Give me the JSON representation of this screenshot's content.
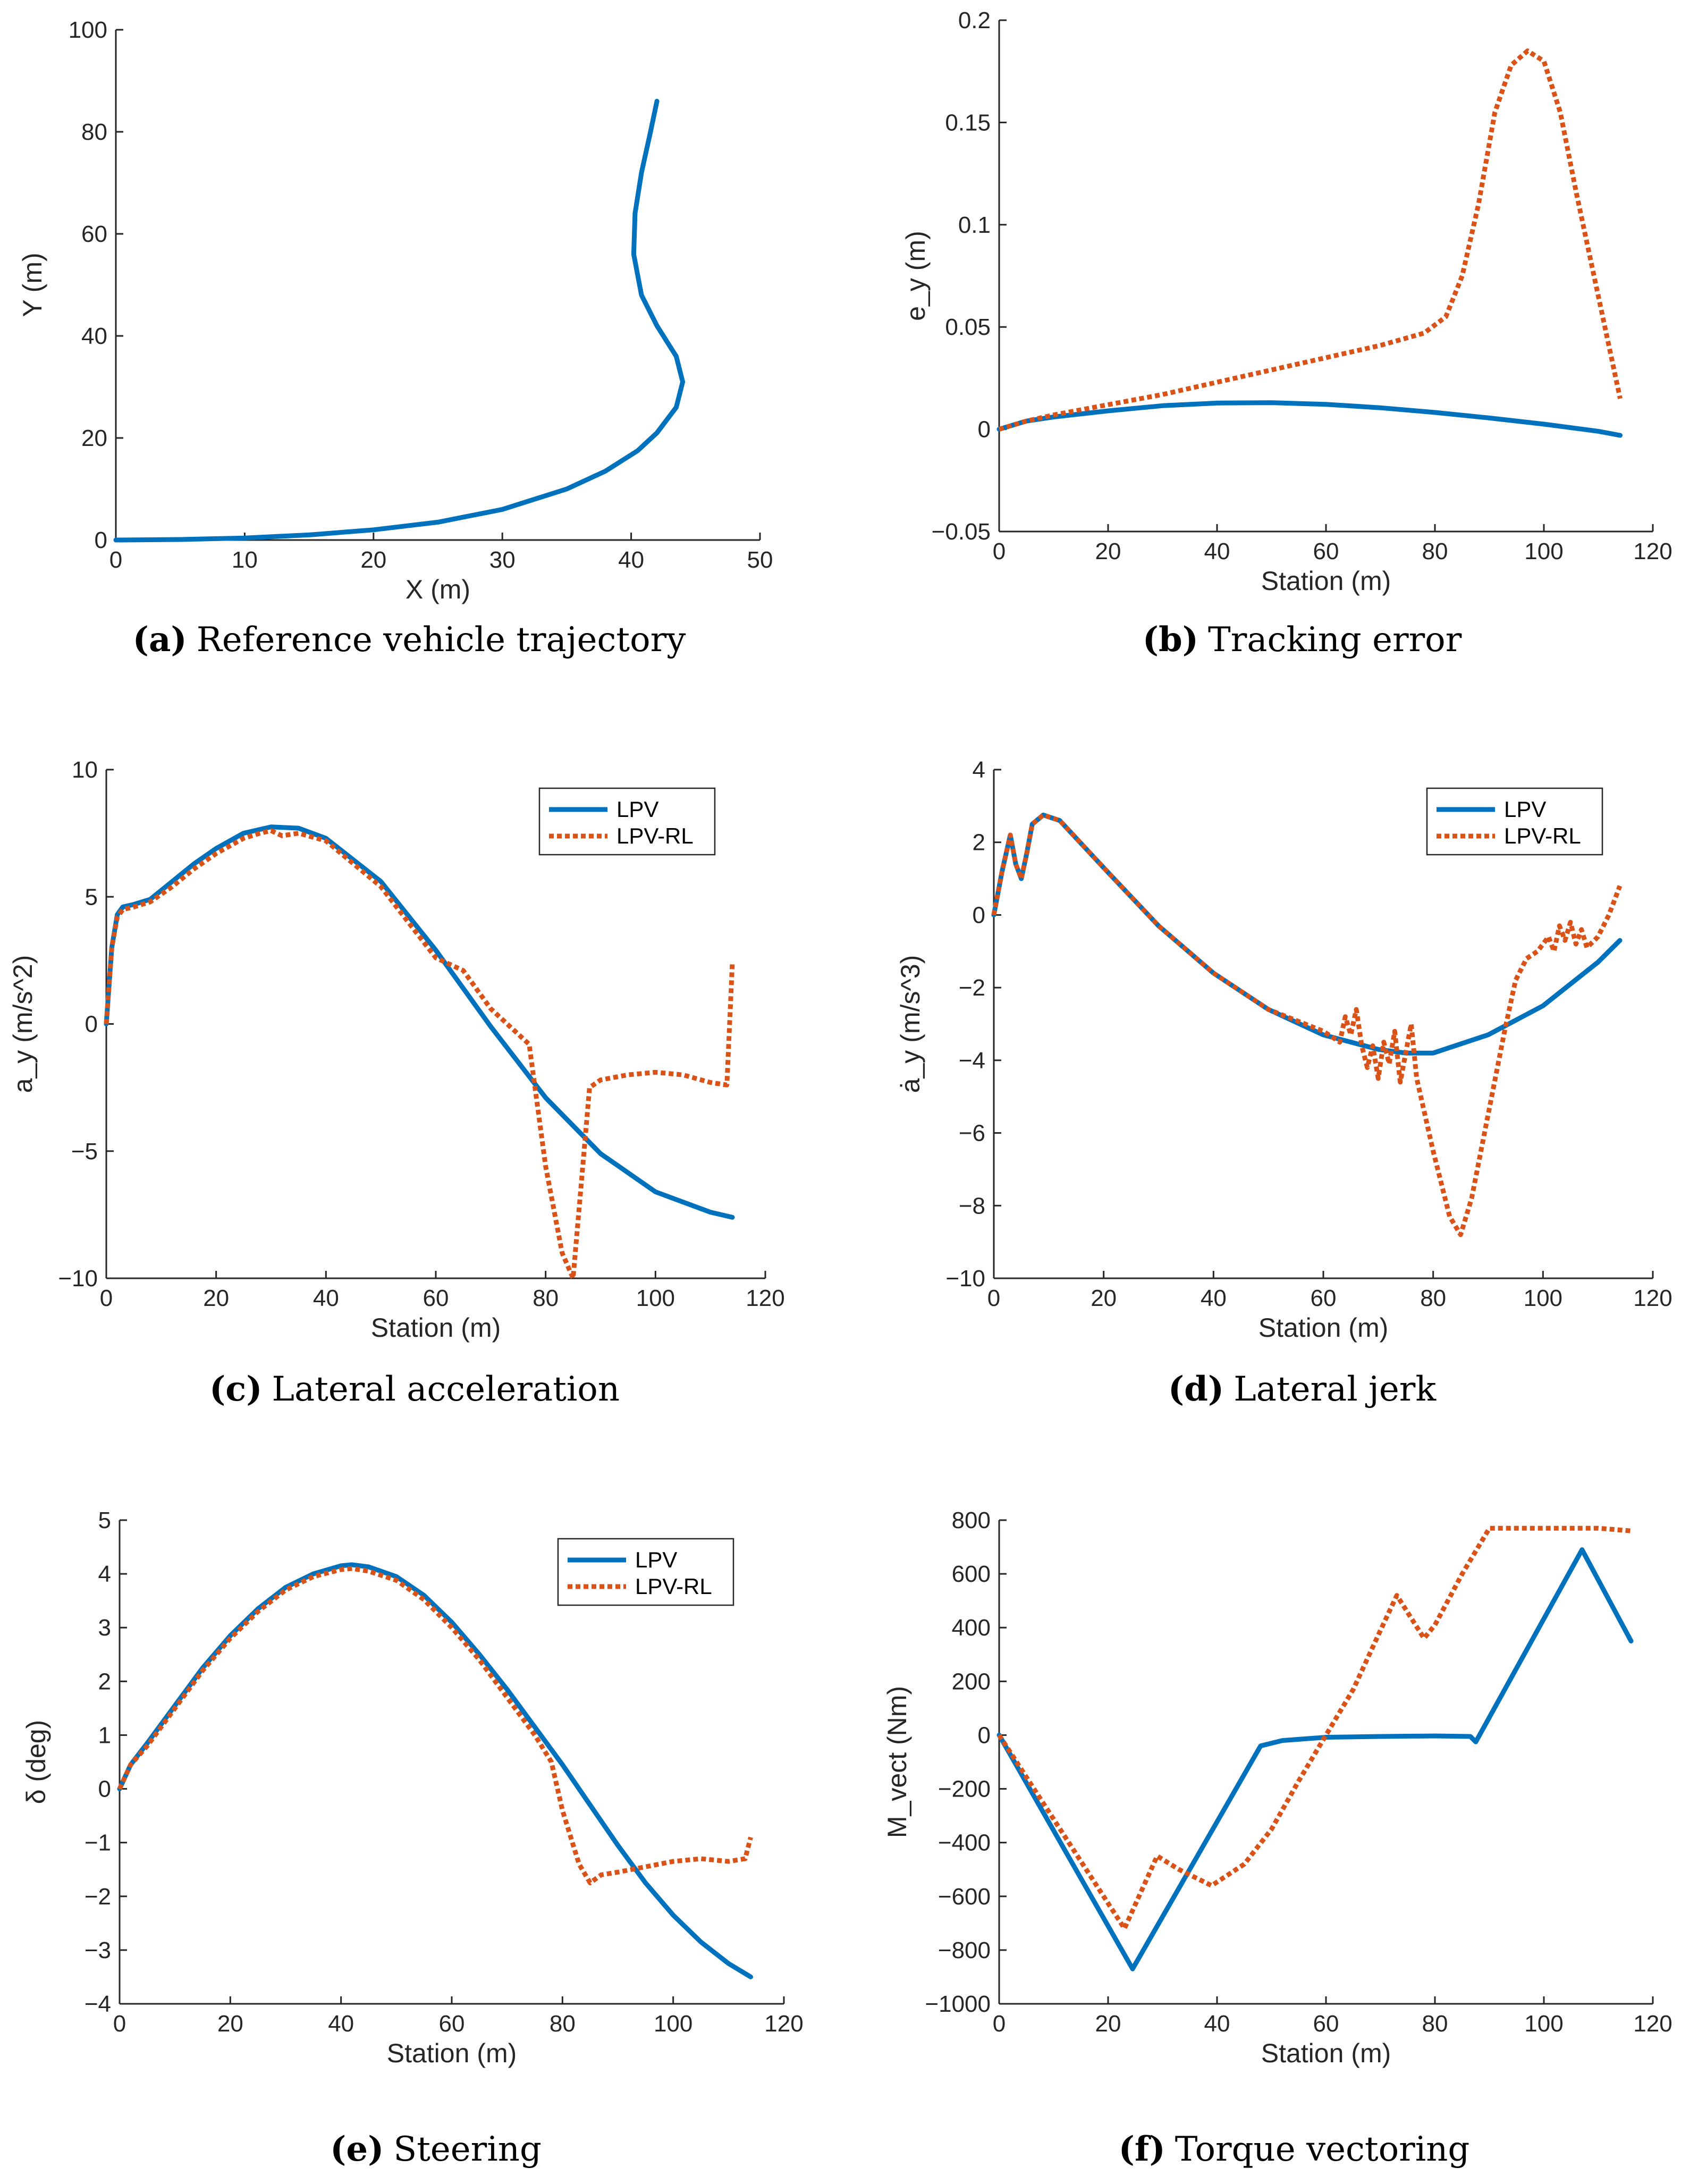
{
  "colors": {
    "lpv": "#0072BD",
    "lpv_rl": "#D95319",
    "axis": "#262626"
  },
  "legend_labels": {
    "lpv": "LPV",
    "lpv_rl": "LPV-RL"
  },
  "chart_data": [
    {
      "id": "a",
      "type": "line",
      "caption_letter": "(a)",
      "caption_text": "Reference vehicle trajectory",
      "xlabel": "X (m)",
      "ylabel": "Y (m)",
      "xlim": [
        0,
        50
      ],
      "ylim": [
        0,
        100
      ],
      "xticks": [
        0,
        10,
        20,
        30,
        40,
        50
      ],
      "yticks": [
        0,
        20,
        40,
        60,
        80,
        100
      ],
      "legend": false,
      "series": [
        {
          "name": "trajectory",
          "style": "solid",
          "color": "#0072BD",
          "x": [
            0,
            5,
            10,
            15,
            20,
            25,
            30,
            35,
            38,
            40.5,
            42,
            43.5,
            44,
            43.5,
            42,
            40.8,
            40.2,
            40.3,
            40.8,
            41.5,
            42
          ],
          "y": [
            0,
            0.1,
            0.4,
            1,
            2,
            3.5,
            6,
            10,
            13.5,
            17.5,
            21,
            26,
            31,
            36,
            42,
            48,
            56,
            64,
            72,
            80,
            86
          ]
        }
      ]
    },
    {
      "id": "b",
      "type": "line",
      "caption_letter": "(b)",
      "caption_text": "Tracking error",
      "xlabel": "Station (m)",
      "ylabel": "e_y (m)",
      "xlim": [
        0,
        120
      ],
      "ylim": [
        -0.05,
        0.2
      ],
      "xticks": [
        0,
        20,
        40,
        60,
        80,
        100,
        120
      ],
      "yticks": [
        -0.05,
        0,
        0.05,
        0.1,
        0.15,
        0.2
      ],
      "ytick_labels": [
        "−0.05",
        "0",
        "0.05",
        "0.1",
        "0.15",
        "0.2"
      ],
      "legend": false,
      "series": [
        {
          "name": "LPV",
          "style": "solid",
          "color": "#0072BD",
          "x": [
            0,
            5,
            10,
            20,
            30,
            40,
            50,
            60,
            70,
            80,
            90,
            100,
            110,
            114
          ],
          "y": [
            0,
            0.004,
            0.006,
            0.009,
            0.0115,
            0.0128,
            0.013,
            0.0122,
            0.0105,
            0.0082,
            0.0055,
            0.0025,
            -0.001,
            -0.003
          ]
        },
        {
          "name": "LPV-RL",
          "style": "dotted",
          "color": "#D95319",
          "x": [
            0,
            5,
            10,
            20,
            30,
            40,
            50,
            60,
            70,
            78,
            82,
            85,
            88,
            91,
            94,
            97,
            100,
            103,
            106,
            110,
            114
          ],
          "y": [
            0,
            0.004,
            0.007,
            0.012,
            0.017,
            0.023,
            0.029,
            0.035,
            0.041,
            0.047,
            0.055,
            0.075,
            0.11,
            0.155,
            0.178,
            0.185,
            0.18,
            0.155,
            0.115,
            0.065,
            0.015
          ]
        }
      ]
    },
    {
      "id": "c",
      "type": "line",
      "caption_letter": "(c)",
      "caption_text": "Lateral acceleration",
      "xlabel": "Station (m)",
      "ylabel": "a_y (m/s^2)",
      "xlim": [
        0,
        120
      ],
      "ylim": [
        -10,
        10
      ],
      "xticks": [
        0,
        20,
        40,
        60,
        80,
        100,
        120
      ],
      "yticks": [
        -10,
        -5,
        0,
        5,
        10
      ],
      "ytick_labels": [
        "−10",
        "−5",
        "0",
        "5",
        "10"
      ],
      "legend": "top-right",
      "series": [
        {
          "name": "LPV",
          "style": "solid",
          "color": "#0072BD",
          "x": [
            0,
            1,
            2,
            3,
            5,
            8,
            12,
            16,
            20,
            25,
            30,
            35,
            40,
            50,
            60,
            70,
            80,
            90,
            100,
            110,
            114
          ],
          "y": [
            0,
            3,
            4.3,
            4.6,
            4.7,
            4.9,
            5.6,
            6.3,
            6.9,
            7.5,
            7.75,
            7.7,
            7.3,
            5.6,
            2.9,
            -0.1,
            -2.9,
            -5.1,
            -6.6,
            -7.4,
            -7.6
          ]
        },
        {
          "name": "LPV-RL",
          "style": "dotted",
          "color": "#D95319",
          "x": [
            0,
            1,
            2,
            3,
            5,
            8,
            12,
            16,
            20,
            25,
            28,
            30,
            32,
            35,
            40,
            50,
            60,
            65,
            70,
            75,
            77,
            80,
            83,
            85,
            87,
            88,
            90,
            95,
            100,
            105,
            110,
            113,
            114
          ],
          "y": [
            0,
            3,
            4.2,
            4.5,
            4.6,
            4.8,
            5.4,
            6.1,
            6.7,
            7.3,
            7.5,
            7.6,
            7.4,
            7.5,
            7.2,
            5.4,
            2.6,
            2.1,
            0.6,
            -0.4,
            -0.8,
            -5.6,
            -9.0,
            -10.0,
            -5.0,
            -2.5,
            -2.2,
            -2.0,
            -1.9,
            -2.0,
            -2.3,
            -2.4,
            2.4
          ]
        }
      ]
    },
    {
      "id": "d",
      "type": "line",
      "caption_letter": "(d)",
      "caption_text": "Lateral jerk",
      "xlabel": "Station (m)",
      "ylabel": "ȧ_y (m/s^3)",
      "xlim": [
        0,
        120
      ],
      "ylim": [
        -10,
        4
      ],
      "xticks": [
        0,
        20,
        40,
        60,
        80,
        100,
        120
      ],
      "yticks": [
        -10,
        -8,
        -6,
        -4,
        -2,
        0,
        2,
        4
      ],
      "ytick_labels": [
        "−10",
        "−8",
        "−6",
        "−4",
        "−2",
        "0",
        "2",
        "4"
      ],
      "legend": "top-right",
      "series": [
        {
          "name": "LPV",
          "style": "solid",
          "color": "#0072BD",
          "x": [
            0,
            1.5,
            3,
            4,
            5,
            6,
            7,
            9,
            12,
            20,
            30,
            40,
            50,
            60,
            70,
            75,
            80,
            90,
            100,
            110,
            114
          ],
          "y": [
            0,
            1.2,
            2.2,
            1.4,
            1.0,
            1.7,
            2.5,
            2.75,
            2.6,
            1.3,
            -0.3,
            -1.6,
            -2.6,
            -3.3,
            -3.7,
            -3.8,
            -3.8,
            -3.3,
            -2.5,
            -1.3,
            -0.7
          ]
        },
        {
          "name": "LPV-RL",
          "style": "dotted",
          "color": "#D95319",
          "x": [
            0,
            1.5,
            3,
            4,
            5,
            6,
            7,
            9,
            12,
            20,
            30,
            40,
            50,
            60,
            63,
            64,
            65,
            66,
            67,
            68,
            69,
            70,
            71,
            72,
            73,
            74,
            75,
            76,
            77,
            80,
            83,
            85,
            87,
            90,
            93,
            95,
            97,
            99,
            101,
            102,
            103,
            104,
            105,
            106,
            107,
            108,
            110,
            112,
            114
          ],
          "y": [
            0,
            1.2,
            2.2,
            1.4,
            1.0,
            1.7,
            2.5,
            2.75,
            2.6,
            1.3,
            -0.3,
            -1.6,
            -2.6,
            -3.2,
            -3.5,
            -2.8,
            -3.3,
            -2.6,
            -3.6,
            -4.2,
            -3.6,
            -4.5,
            -3.5,
            -4.1,
            -3.2,
            -4.6,
            -3.8,
            -3.0,
            -4.5,
            -6.5,
            -8.3,
            -8.8,
            -7.8,
            -5.5,
            -3.2,
            -1.8,
            -1.2,
            -1.0,
            -0.6,
            -1.0,
            -0.3,
            -0.7,
            -0.2,
            -0.8,
            -0.4,
            -0.9,
            -0.6,
            0.0,
            0.8
          ]
        }
      ]
    },
    {
      "id": "e",
      "type": "line",
      "caption_letter": "(e)",
      "caption_text": "Steering",
      "xlabel": "Station (m)",
      "ylabel": "δ (deg)",
      "xlim": [
        0,
        120
      ],
      "ylim": [
        -4,
        5
      ],
      "xticks": [
        0,
        20,
        40,
        60,
        80,
        100,
        120
      ],
      "yticks": [
        -4,
        -3,
        -2,
        -1,
        0,
        1,
        2,
        3,
        4,
        5
      ],
      "ytick_labels": [
        "−4",
        "−3",
        "−2",
        "−1",
        "0",
        "1",
        "2",
        "3",
        "4",
        "5"
      ],
      "legend": "top-right",
      "series": [
        {
          "name": "LPV",
          "style": "solid",
          "color": "#0072BD",
          "x": [
            0,
            2,
            5,
            10,
            15,
            20,
            25,
            30,
            35,
            40,
            42,
            45,
            50,
            55,
            60,
            65,
            70,
            75,
            80,
            85,
            90,
            95,
            100,
            105,
            110,
            114
          ],
          "y": [
            0,
            0.45,
            0.85,
            1.55,
            2.25,
            2.85,
            3.35,
            3.75,
            4.0,
            4.15,
            4.17,
            4.13,
            3.95,
            3.6,
            3.1,
            2.5,
            1.85,
            1.15,
            0.45,
            -0.3,
            -1.05,
            -1.75,
            -2.35,
            -2.85,
            -3.25,
            -3.5
          ]
        },
        {
          "name": "LPV-RL",
          "style": "dotted",
          "color": "#D95319",
          "x": [
            0,
            2,
            5,
            10,
            15,
            20,
            25,
            30,
            35,
            40,
            42,
            45,
            50,
            55,
            60,
            65,
            70,
            75,
            78,
            80,
            83,
            85,
            87,
            90,
            95,
            100,
            105,
            110,
            113,
            114
          ],
          "y": [
            0,
            0.45,
            0.8,
            1.5,
            2.2,
            2.8,
            3.3,
            3.7,
            3.95,
            4.08,
            4.1,
            4.05,
            3.88,
            3.52,
            3.0,
            2.4,
            1.7,
            1.0,
            0.5,
            -0.4,
            -1.4,
            -1.75,
            -1.6,
            -1.55,
            -1.45,
            -1.35,
            -1.3,
            -1.35,
            -1.3,
            -0.9
          ]
        }
      ]
    },
    {
      "id": "f",
      "type": "line",
      "caption_letter": "(f)",
      "caption_text": "Torque vectoring",
      "xlabel": "Station (m)",
      "ylabel": "M_vect (Nm)",
      "xlim": [
        0,
        120
      ],
      "ylim": [
        -1000,
        800
      ],
      "xticks": [
        0,
        20,
        40,
        60,
        80,
        100,
        120
      ],
      "yticks": [
        -1000,
        -800,
        -600,
        -400,
        -200,
        0,
        200,
        400,
        600,
        800
      ],
      "ytick_labels": [
        "−1000",
        "−800",
        "−600",
        "−400",
        "−200",
        "0",
        "200",
        "400",
        "600",
        "800"
      ],
      "legend": false,
      "series": [
        {
          "name": "LPV",
          "style": "solid",
          "color": "#0072BD",
          "x": [
            0,
            24.5,
            48,
            52,
            60,
            70,
            80,
            86.5,
            87.5,
            107,
            116
          ],
          "y": [
            0,
            -870,
            -40,
            -20,
            -8,
            -5,
            -3,
            -5,
            -25,
            690,
            350
          ]
        },
        {
          "name": "LPV-RL",
          "style": "dotted",
          "color": "#D95319",
          "x": [
            0,
            23,
            29,
            33,
            39,
            45,
            50,
            55,
            60,
            65,
            70,
            73,
            78,
            80,
            85,
            90,
            100,
            110,
            116
          ],
          "y": [
            0,
            -720,
            -450,
            -500,
            -560,
            -480,
            -350,
            -170,
            0,
            170,
            390,
            520,
            360,
            410,
            600,
            770,
            770,
            770,
            760
          ]
        }
      ]
    }
  ]
}
